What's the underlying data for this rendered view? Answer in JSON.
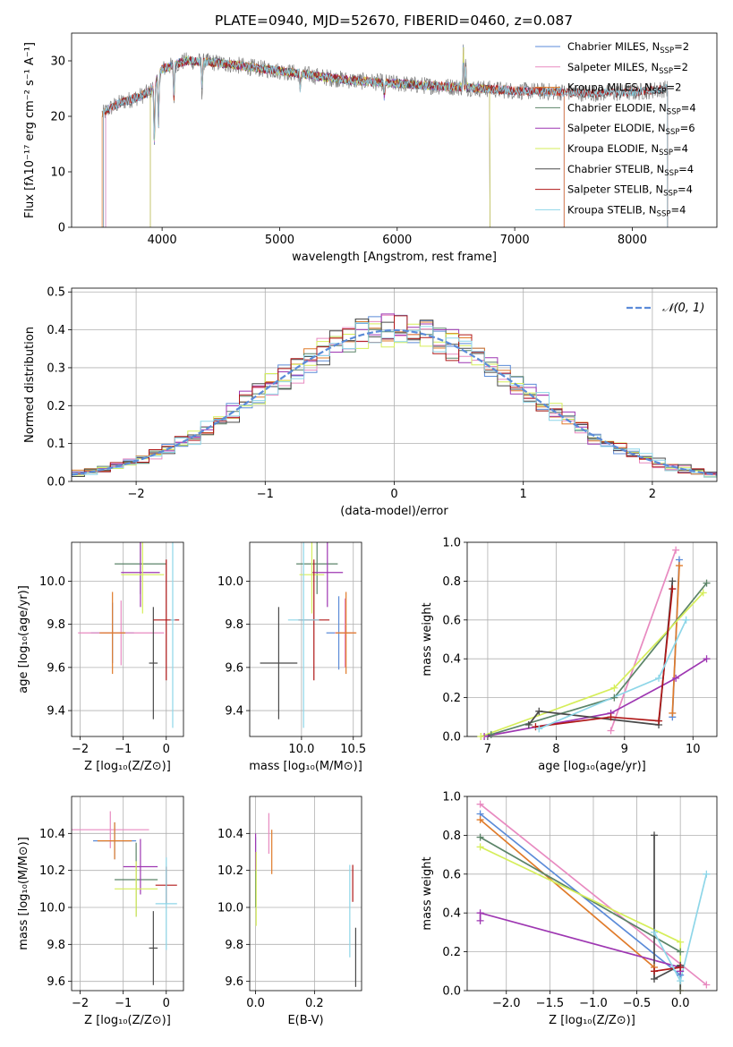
{
  "page_title": "PLATE=0940, MJD=52670, FIBERID=0460, z=0.087",
  "models": [
    {
      "name": "Chabrier MILES",
      "nssp": "2",
      "color": "#5b8bd8"
    },
    {
      "name": "Salpeter MILES",
      "nssp": "2",
      "color": "#e88ac0"
    },
    {
      "name": "Kroupa MILES",
      "nssp": "2",
      "color": "#e07b2a"
    },
    {
      "name": "Chabrier ELODIE",
      "nssp": "4",
      "color": "#5b8468"
    },
    {
      "name": "Salpeter ELODIE",
      "nssp": "6",
      "color": "#9e37b2"
    },
    {
      "name": "Kroupa ELODIE",
      "nssp": "4",
      "color": "#d6ee5a"
    },
    {
      "name": "Chabrier STELIB",
      "nssp": "4",
      "color": "#4a4a4a"
    },
    {
      "name": "Salpeter STELIB",
      "nssp": "4",
      "color": "#b01818"
    },
    {
      "name": "Kroupa STELIB",
      "nssp": "4",
      "color": "#8ed6e8"
    }
  ],
  "chart_data": [
    {
      "id": "spectrum",
      "type": "line",
      "title": "PLATE=0940, MJD=52670, FIBERID=0460, z=0.087",
      "xlabel": "wavelength [Angstrom, rest frame]",
      "ylabel": "Flux [fλ10⁻¹⁷ erg cm⁻² s⁻¹ A⁻¹]",
      "xlim": [
        3230,
        8720
      ],
      "ylim": [
        0,
        35
      ],
      "xticks": [
        4000,
        5000,
        6000,
        7000,
        8000
      ],
      "yticks": [
        0,
        10,
        20,
        30
      ],
      "data_color": "#808080",
      "legend_position": "top-right",
      "continuum": {
        "x": [
          3500,
          3560,
          3650,
          3800,
          3900,
          4000,
          4200,
          4400,
          4600,
          4800,
          5000,
          5200,
          5400,
          5600,
          5800,
          6000,
          6200,
          6400,
          6600,
          6800,
          7000,
          7200,
          7400,
          7600,
          7800,
          8000,
          8300
        ],
        "y": [
          20.5,
          21.5,
          22.5,
          23.5,
          24.5,
          28.5,
          30.0,
          29.8,
          29.3,
          28.7,
          28.2,
          27.6,
          27.0,
          26.5,
          26.2,
          25.9,
          25.6,
          25.4,
          25.2,
          24.9,
          24.6,
          24.5,
          24.4,
          24.2,
          24.2,
          24.3,
          25.0
        ]
      },
      "absorption": [
        [
          3934,
          12
        ],
        [
          3969,
          10
        ],
        [
          4101,
          7
        ],
        [
          4340,
          6
        ],
        [
          5175,
          3
        ],
        [
          5890,
          3
        ]
      ],
      "emission": [
        [
          6563,
          8
        ],
        [
          6584,
          5
        ]
      ]
    },
    {
      "id": "residuals",
      "type": "line",
      "xlabel": "(data-model)/error",
      "ylabel": "Normed distribution",
      "xlim": [
        -2.5,
        2.5
      ],
      "ylim": [
        0,
        0.51
      ],
      "xticks": [
        -2,
        -1,
        0,
        1,
        2
      ],
      "yticks": [
        0.0,
        0.1,
        0.2,
        0.3,
        0.4,
        0.5
      ],
      "reference_label": "𝒩(0, 1)",
      "reference_color": "#5b8bd8",
      "bin_width": 0.1,
      "grid": true,
      "legend_position": "top-right"
    },
    {
      "id": "age_vs_Z",
      "type": "scatter",
      "xlabel": "Z [log₁₀(Z/Z⊙)]",
      "ylabel": "age  [log₁₀(age/yr)]",
      "xlim": [
        -2.2,
        0.4
      ],
      "ylim": [
        9.28,
        10.18
      ],
      "xticks": [
        -2,
        -1,
        0
      ],
      "yticks": [
        9.4,
        9.6,
        9.8,
        10.0
      ],
      "grid": true,
      "points": [
        {
          "x": -1.25,
          "y": 9.76,
          "xerr": 0.5,
          "yerr": 0.14
        },
        {
          "x": -1.05,
          "y": 9.76,
          "xerr": 1.0,
          "yerr": 0.15
        },
        {
          "x": -1.25,
          "y": 9.76,
          "xerr": 0.3,
          "yerr": 0.19
        },
        {
          "x": -0.6,
          "y": 10.08,
          "xerr": 0.6,
          "yerr": 0.14
        },
        {
          "x": -0.6,
          "y": 10.04,
          "xerr": 0.45,
          "yerr": 0.16
        },
        {
          "x": -0.55,
          "y": 10.03,
          "xerr": 0.5,
          "yerr": 0.18
        },
        {
          "x": -0.3,
          "y": 9.62,
          "xerr": 0.1,
          "yerr": 0.26
        },
        {
          "x": 0.0,
          "y": 9.82,
          "xerr": 0.3,
          "yerr": 0.28
        },
        {
          "x": 0.15,
          "y": 9.82,
          "xerr": 0.05,
          "yerr": 0.5
        }
      ]
    },
    {
      "id": "age_vs_mass",
      "type": "scatter",
      "xlabel": "mass [log₁₀(M/M⊙)]",
      "xlim": [
        9.5,
        10.58
      ],
      "ylim": [
        9.28,
        10.18
      ],
      "xticks": [
        10.0,
        10.5
      ],
      "yticks": [
        9.4,
        9.6,
        9.8,
        10.0
      ],
      "grid": true,
      "points": [
        {
          "x": 10.36,
          "y": 9.76,
          "xerr": 0.12,
          "yerr": 0.17
        },
        {
          "x": 10.42,
          "y": 9.76,
          "xerr": 0.1,
          "yerr": 0.16
        },
        {
          "x": 10.43,
          "y": 9.76,
          "xerr": 0.1,
          "yerr": 0.19
        },
        {
          "x": 10.15,
          "y": 10.08,
          "xerr": 0.2,
          "yerr": 0.14
        },
        {
          "x": 10.25,
          "y": 10.04,
          "xerr": 0.15,
          "yerr": 0.16
        },
        {
          "x": 10.1,
          "y": 10.03,
          "xerr": 0.12,
          "yerr": 0.18
        },
        {
          "x": 9.78,
          "y": 9.62,
          "xerr": 0.18,
          "yerr": 0.26
        },
        {
          "x": 10.12,
          "y": 9.82,
          "xerr": 0.15,
          "yerr": 0.28
        },
        {
          "x": 10.02,
          "y": 9.82,
          "xerr": 0.15,
          "yerr": 0.5
        }
      ]
    },
    {
      "id": "mass_weight_vs_age",
      "type": "line",
      "xlabel": "age  [log₁₀(age/yr)]",
      "ylabel": "mass weight",
      "xlim": [
        6.7,
        10.35
      ],
      "ylim": [
        0,
        1.0
      ],
      "xticks": [
        7,
        8,
        9,
        10
      ],
      "yticks": [
        0.0,
        0.2,
        0.4,
        0.6,
        0.8,
        1.0
      ],
      "grid": true,
      "series": [
        {
          "x": [
            9.7,
            9.8
          ],
          "y": [
            0.1,
            0.91
          ]
        },
        {
          "x": [
            8.8,
            9.75
          ],
          "y": [
            0.03,
            0.96
          ]
        },
        {
          "x": [
            9.7,
            9.8
          ],
          "y": [
            0.12,
            0.88
          ]
        },
        {
          "x": [
            7.05,
            8.85,
            10.2
          ],
          "y": [
            0.01,
            0.2,
            0.79
          ]
        },
        {
          "x": [
            6.95,
            8.8,
            9.75,
            10.2
          ],
          "y": [
            0.0,
            0.12,
            0.3,
            0.4
          ]
        },
        {
          "x": [
            6.9,
            8.85,
            10.15
          ],
          "y": [
            0.0,
            0.25,
            0.74
          ]
        },
        {
          "x": [
            7.6,
            7.75,
            9.5,
            9.7
          ],
          "y": [
            0.06,
            0.13,
            0.06,
            0.8
          ]
        },
        {
          "x": [
            7.7,
            8.8,
            9.5,
            9.7
          ],
          "y": [
            0.05,
            0.1,
            0.08,
            0.76
          ]
        },
        {
          "x": [
            7.75,
            9.5,
            9.9
          ],
          "y": [
            0.04,
            0.3,
            0.6
          ]
        }
      ]
    },
    {
      "id": "mass_vs_Z",
      "type": "scatter",
      "xlabel": "Z [log₁₀(Z/Z⊙)]",
      "ylabel": "mass [log₁₀(M/M⊙)]",
      "xlim": [
        -2.2,
        0.4
      ],
      "ylim": [
        9.55,
        10.6
      ],
      "xticks": [
        -2,
        -1,
        0
      ],
      "yticks": [
        9.6,
        9.8,
        10.0,
        10.2,
        10.4
      ],
      "grid": true,
      "points": [
        {
          "x": -1.2,
          "y": 10.36,
          "xerr": 0.5,
          "yerr": 0.1
        },
        {
          "x": -1.3,
          "y": 10.42,
          "xerr": 0.9,
          "yerr": 0.1
        },
        {
          "x": -1.2,
          "y": 10.36,
          "xerr": 0.4,
          "yerr": 0.1
        },
        {
          "x": -0.7,
          "y": 10.15,
          "xerr": 0.5,
          "yerr": 0.2
        },
        {
          "x": -0.6,
          "y": 10.22,
          "xerr": 0.4,
          "yerr": 0.15
        },
        {
          "x": -0.7,
          "y": 10.1,
          "xerr": 0.5,
          "yerr": 0.15
        },
        {
          "x": -0.3,
          "y": 9.78,
          "xerr": 0.1,
          "yerr": 0.2
        },
        {
          "x": 0.0,
          "y": 10.12,
          "xerr": 0.25,
          "yerr": 0.1
        },
        {
          "x": 0.0,
          "y": 10.02,
          "xerr": 0.25,
          "yerr": 0.25
        }
      ]
    },
    {
      "id": "mass_vs_ebv",
      "type": "scatter",
      "xlabel": "E(B-V)",
      "xlim": [
        -0.02,
        0.36
      ],
      "ylim": [
        9.55,
        10.6
      ],
      "xticks": [
        0.0,
        0.2
      ],
      "yticks": [
        9.6,
        9.8,
        10.0,
        10.2,
        10.4
      ],
      "grid": true,
      "points": [
        {
          "x": 0.0,
          "y": 10.3,
          "xerr": 0.0,
          "yerr": 0.08
        },
        {
          "x": 0.045,
          "y": 10.4,
          "xerr": 0.0,
          "yerr": 0.11
        },
        {
          "x": 0.055,
          "y": 10.3,
          "xerr": 0.0,
          "yerr": 0.12
        },
        {
          "x": 0.0,
          "y": 10.15,
          "xerr": 0.0,
          "yerr": 0.15
        },
        {
          "x": 0.0,
          "y": 10.3,
          "xerr": 0.0,
          "yerr": 0.1
        },
        {
          "x": 0.002,
          "y": 10.1,
          "xerr": 0.0,
          "yerr": 0.2
        },
        {
          "x": 0.34,
          "y": 9.73,
          "xerr": 0.0,
          "yerr": 0.16
        },
        {
          "x": 0.33,
          "y": 10.13,
          "xerr": 0.0,
          "yerr": 0.1
        },
        {
          "x": 0.32,
          "y": 9.98,
          "xerr": 0.0,
          "yerr": 0.25
        }
      ]
    },
    {
      "id": "mass_weight_vs_Z",
      "type": "line",
      "xlabel": "Z [log₁₀(Z/Z⊙)]",
      "ylabel": "mass weight",
      "xlim": [
        -2.45,
        0.42
      ],
      "ylim": [
        0,
        1.0
      ],
      "xticks": [
        -2.0,
        -1.5,
        -1.0,
        -0.5,
        0.0
      ],
      "yticks": [
        0.0,
        0.2,
        0.4,
        0.6,
        0.8,
        1.0
      ],
      "grid": true,
      "series": [
        {
          "x": [
            -2.3,
            0.0
          ],
          "y": [
            0.91,
            0.08
          ]
        },
        {
          "x": [
            -2.3,
            0.3
          ],
          "y": [
            0.96,
            0.03
          ]
        },
        {
          "x": [
            -2.3,
            -0.3
          ],
          "y": [
            0.88,
            0.12
          ]
        },
        {
          "x": [
            -2.3,
            0.0
          ],
          "y": [
            0.79,
            0.2
          ]
        },
        {
          "x": [
            -2.3,
            -2.3,
            0.0,
            0.0
          ],
          "y": [
            0.36,
            0.4,
            0.12,
            0.1
          ]
        },
        {
          "x": [
            -2.3,
            0.0,
            0.0
          ],
          "y": [
            0.74,
            0.25,
            0.0
          ]
        },
        {
          "x": [
            -0.3,
            -0.3,
            0.0,
            0.0
          ],
          "y": [
            0.8,
            0.06,
            0.13,
            0.0
          ]
        },
        {
          "x": [
            -0.3,
            0.0
          ],
          "y": [
            0.1,
            0.12
          ]
        },
        {
          "x": [
            -0.3,
            0.0,
            0.3
          ],
          "y": [
            0.3,
            0.05,
            0.6
          ]
        }
      ]
    }
  ]
}
